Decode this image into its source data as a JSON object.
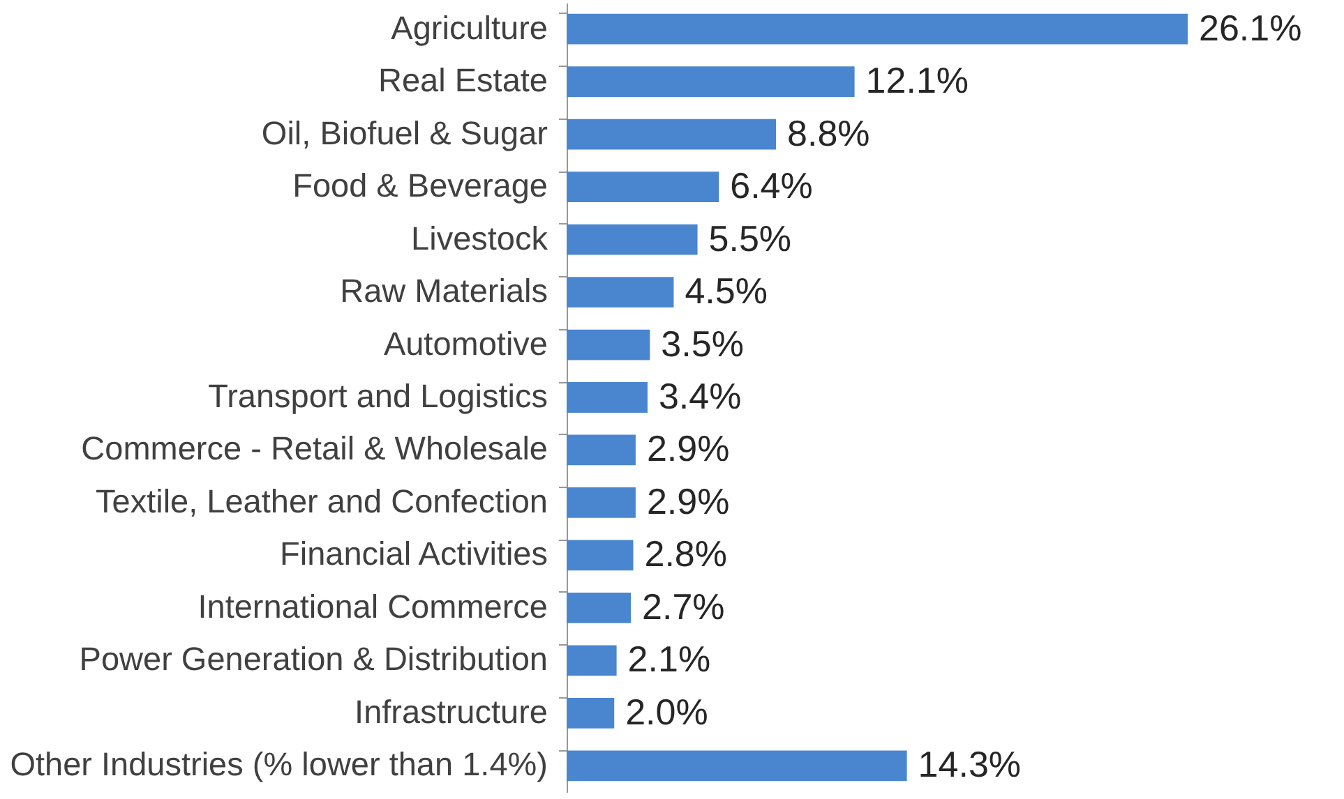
{
  "chart_data": {
    "type": "bar",
    "orientation": "horizontal",
    "categories": [
      "Agriculture",
      "Real Estate",
      "Oil, Biofuel & Sugar",
      "Food & Beverage",
      "Livestock",
      "Raw Materials",
      "Automotive",
      "Transport and Logistics",
      "Commerce - Retail & Wholesale",
      "Textile, Leather and Confection",
      "Financial Activities",
      "International Commerce",
      "Power Generation & Distribution",
      "Infrastructure",
      "Other Industries (% lower than 1.4%)"
    ],
    "values": [
      26.1,
      12.1,
      8.8,
      6.4,
      5.5,
      4.5,
      3.5,
      3.4,
      2.9,
      2.9,
      2.8,
      2.7,
      2.1,
      2.0,
      14.3
    ],
    "value_labels": [
      "26.1%",
      "12.1%",
      "8.8%",
      "6.4%",
      "5.5%",
      "4.5%",
      "3.5%",
      "3.4%",
      "2.9%",
      "2.9%",
      "2.8%",
      "2.7%",
      "2.1%",
      "2.0%",
      "14.3%"
    ],
    "color": "#4a86cf",
    "tick_labels": "y"
  }
}
